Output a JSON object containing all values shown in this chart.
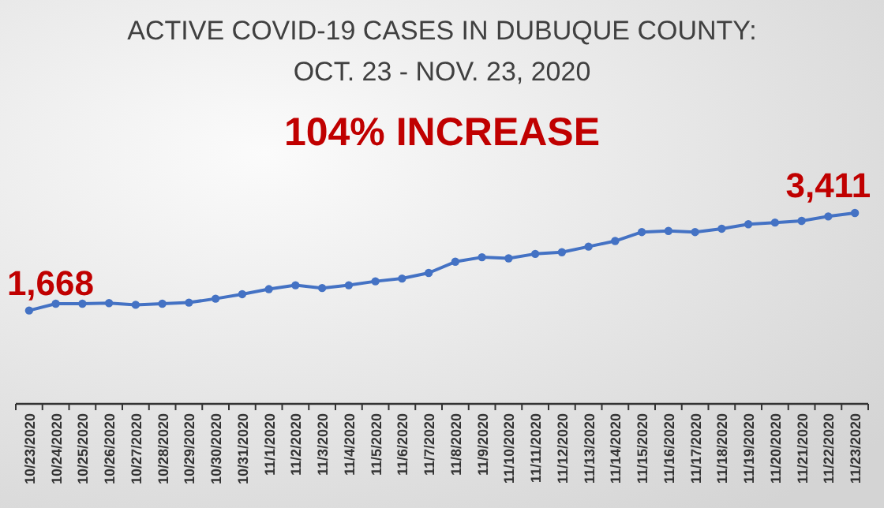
{
  "chart_data": {
    "type": "line",
    "title": "ACTIVE COVID-19 CASES IN DUBUQUE COUNTY: OCT. 23 - NOV. 23, 2020",
    "subtitle": "104% INCREASE",
    "categories": [
      "10/23/2020",
      "10/24/2020",
      "10/25/2020",
      "10/26/2020",
      "10/27/2020",
      "10/28/2020",
      "10/29/2020",
      "10/30/2020",
      "10/31/2020",
      "11/1/2020",
      "11/2/2020",
      "11/3/2020",
      "11/4/2020",
      "11/5/2020",
      "11/6/2020",
      "11/7/2020",
      "11/8/2020",
      "11/9/2020",
      "11/10/2020",
      "11/11/2020",
      "11/12/2020",
      "11/13/2020",
      "11/14/2020",
      "11/15/2020",
      "11/16/2020",
      "11/17/2020",
      "11/18/2020",
      "11/19/2020",
      "11/20/2020",
      "11/21/2020",
      "11/22/2020",
      "11/23/2020"
    ],
    "series": [
      {
        "color": "#4472c4",
        "values": [
          1668,
          1790,
          1790,
          1800,
          1770,
          1790,
          1810,
          1880,
          1960,
          2050,
          2120,
          2070,
          2120,
          2190,
          2240,
          2340,
          2540,
          2620,
          2600,
          2680,
          2710,
          2810,
          2910,
          3070,
          3090,
          3070,
          3130,
          3210,
          3240,
          3270,
          3350,
          3411
        ],
        "value_labels": [
          "1,668",
          null,
          null,
          null,
          null,
          null,
          null,
          null,
          null,
          null,
          null,
          null,
          null,
          null,
          null,
          null,
          null,
          null,
          null,
          null,
          null,
          null,
          null,
          null,
          null,
          null,
          null,
          null,
          null,
          null,
          null,
          "3,411"
        ]
      }
    ],
    "tick_labels": "x",
    "marker": "circle"
  }
}
